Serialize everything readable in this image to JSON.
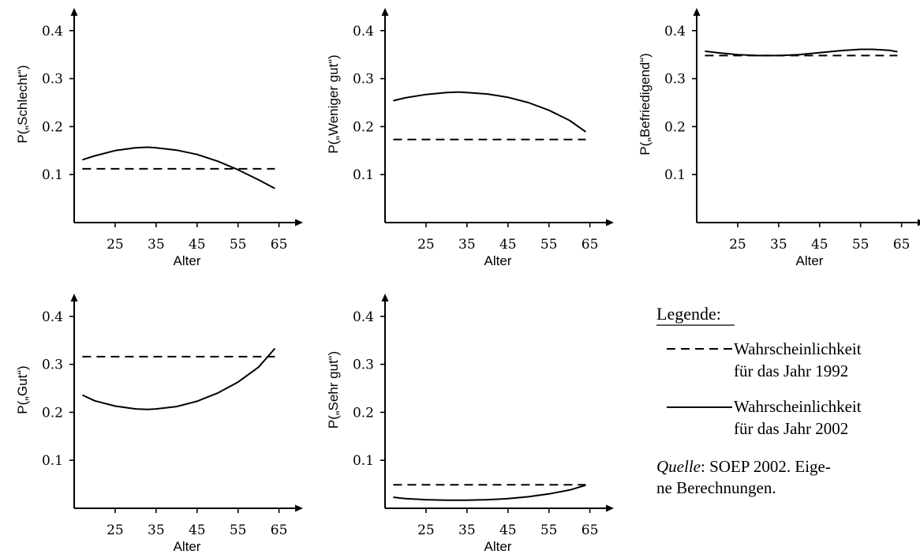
{
  "chart_data": [
    {
      "type": "line",
      "ylabel": "P(„Schlecht“)",
      "xlabel": "Alter",
      "xticks": [
        25,
        35,
        45,
        55,
        65
      ],
      "yticks": [
        "0.1",
        "0.2",
        "0.3",
        "0.4"
      ],
      "xlim": [
        15,
        67
      ],
      "ylim": [
        0.0,
        0.44
      ],
      "series": [
        {
          "name": "Wahrscheinlichkeit für das Jahr 1992",
          "style": "dashed",
          "x": [
            17,
            64
          ],
          "y": [
            0.112,
            0.112
          ]
        },
        {
          "name": "Wahrscheinlichkeit für das Jahr 2002",
          "style": "solid",
          "x": [
            17,
            20,
            25,
            30,
            33,
            35,
            40,
            45,
            50,
            55,
            60,
            64
          ],
          "y": [
            0.131,
            0.139,
            0.15,
            0.156,
            0.157,
            0.156,
            0.151,
            0.142,
            0.128,
            0.11,
            0.089,
            0.071
          ]
        }
      ]
    },
    {
      "type": "line",
      "ylabel": "P(„Weniger gut“)",
      "xlabel": "Alter",
      "xticks": [
        25,
        35,
        45,
        55,
        65
      ],
      "yticks": [
        "0.1",
        "0.2",
        "0.3",
        "0.4"
      ],
      "xlim": [
        15,
        67
      ],
      "ylim": [
        0.0,
        0.44
      ],
      "series": [
        {
          "name": "Wahrscheinlichkeit für das Jahr 1992",
          "style": "dashed",
          "x": [
            17,
            64
          ],
          "y": [
            0.173,
            0.173
          ]
        },
        {
          "name": "Wahrscheinlichkeit für das Jahr 2002",
          "style": "solid",
          "x": [
            17,
            20,
            25,
            30,
            33,
            35,
            40,
            45,
            50,
            55,
            60,
            64
          ],
          "y": [
            0.254,
            0.26,
            0.267,
            0.271,
            0.272,
            0.271,
            0.268,
            0.261,
            0.25,
            0.234,
            0.213,
            0.189
          ]
        }
      ]
    },
    {
      "type": "line",
      "ylabel": "P(„Befriedigend“)",
      "xlabel": "Alter",
      "xticks": [
        25,
        35,
        45,
        55,
        65
      ],
      "yticks": [
        "0.1",
        "0.2",
        "0.3",
        "0.4"
      ],
      "xlim": [
        15,
        67
      ],
      "ylim": [
        0.0,
        0.44
      ],
      "series": [
        {
          "name": "Wahrscheinlichkeit für das Jahr 1992",
          "style": "dashed",
          "x": [
            17,
            64
          ],
          "y": [
            0.348,
            0.348
          ]
        },
        {
          "name": "Wahrscheinlichkeit für das Jahr 2002",
          "style": "solid",
          "x": [
            17,
            20,
            25,
            30,
            35,
            40,
            45,
            50,
            55,
            58,
            62,
            64
          ],
          "y": [
            0.357,
            0.354,
            0.35,
            0.348,
            0.348,
            0.35,
            0.354,
            0.358,
            0.361,
            0.361,
            0.359,
            0.356
          ]
        }
      ]
    },
    {
      "type": "line",
      "ylabel": "P(„Gut“)",
      "xlabel": "Alter",
      "xticks": [
        25,
        35,
        45,
        55,
        65
      ],
      "yticks": [
        "0.1",
        "0.2",
        "0.3",
        "0.4"
      ],
      "xlim": [
        15,
        67
      ],
      "ylim": [
        0.0,
        0.44
      ],
      "series": [
        {
          "name": "Wahrscheinlichkeit für das Jahr 1992",
          "style": "dashed",
          "x": [
            17,
            64
          ],
          "y": [
            0.316,
            0.316
          ]
        },
        {
          "name": "Wahrscheinlichkeit für das Jahr 2002",
          "style": "solid",
          "x": [
            17,
            20,
            25,
            30,
            33,
            35,
            40,
            45,
            50,
            55,
            60,
            64
          ],
          "y": [
            0.236,
            0.224,
            0.213,
            0.207,
            0.206,
            0.207,
            0.212,
            0.223,
            0.24,
            0.263,
            0.294,
            0.333
          ]
        }
      ]
    },
    {
      "type": "line",
      "ylabel": "P(„Sehr gut“)",
      "xlabel": "Alter",
      "xticks": [
        25,
        35,
        45,
        55,
        65
      ],
      "yticks": [
        "0.1",
        "0.2",
        "0.3",
        "0.4"
      ],
      "xlim": [
        15,
        67
      ],
      "ylim": [
        0.0,
        0.44
      ],
      "series": [
        {
          "name": "Wahrscheinlichkeit für das Jahr 1992",
          "style": "dashed",
          "x": [
            17,
            64
          ],
          "y": [
            0.049,
            0.049
          ]
        },
        {
          "name": "Wahrscheinlichkeit für das Jahr 2002",
          "style": "solid",
          "x": [
            17,
            20,
            25,
            30,
            35,
            40,
            45,
            50,
            55,
            60,
            64
          ],
          "y": [
            0.023,
            0.02,
            0.018,
            0.017,
            0.017,
            0.018,
            0.02,
            0.024,
            0.03,
            0.038,
            0.048
          ]
        }
      ]
    }
  ],
  "legend": {
    "title": "Legende:",
    "entries": [
      {
        "style": "dashed",
        "line1": "Wahrscheinlichkeit",
        "line2": "für das Jahr 1992"
      },
      {
        "style": "solid",
        "line1": "Wahrscheinlichkeit",
        "line2": "für das Jahr 2002"
      }
    ],
    "source_label": "Quelle",
    "source_text": ": SOEP 2002. Eige-",
    "source_text2": "ne Berechnungen."
  }
}
